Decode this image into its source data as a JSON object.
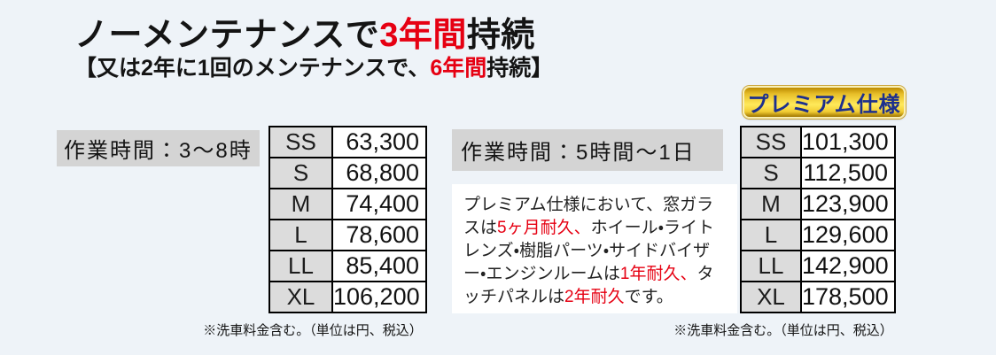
{
  "header": {
    "title": {
      "pre": "ノーメンテナンスで",
      "highlight": "3年間",
      "post": "持続"
    },
    "subtitle": {
      "pre": "【又は2年に1回のメンテナンスで、",
      "highlight": "6年間",
      "post": "持続】"
    }
  },
  "premium_badge": {
    "label": "プレミアム仕様"
  },
  "standard_plan": {
    "work_time_label": "作業時間：3～8時",
    "price_table": {
      "rows": [
        {
          "size": "SS",
          "price": "63,300"
        },
        {
          "size": "S",
          "price": "68,800"
        },
        {
          "size": "M",
          "price": "74,400"
        },
        {
          "size": "L",
          "price": "78,600"
        },
        {
          "size": "LL",
          "price": "85,400"
        },
        {
          "size": "XL",
          "price": "106,200"
        }
      ]
    },
    "footnote": "※洗車料金含む。（単位は円、税込）"
  },
  "premium_plan": {
    "work_time_label": "作業時間：5時間～1日",
    "description_segments": [
      {
        "text": "プレミアム仕様において、窓ガラスは",
        "red": false
      },
      {
        "text": "5ヶ月耐久、",
        "red": true
      },
      {
        "text": "ホイール・ライトレンズ・樹脂パーツ・サイドバイザー・エンジンルームは",
        "red": false
      },
      {
        "text": "1年耐久、",
        "red": true
      },
      {
        "text": "タッチパネルは",
        "red": false
      },
      {
        "text": "2年耐久",
        "red": true
      },
      {
        "text": "です。",
        "red": false
      }
    ],
    "price_table": {
      "rows": [
        {
          "size": "SS",
          "price": "101,300"
        },
        {
          "size": "S",
          "price": "112,500"
        },
        {
          "size": "M",
          "price": "123,900"
        },
        {
          "size": "L",
          "price": "129,600"
        },
        {
          "size": "LL",
          "price": "142,900"
        },
        {
          "size": "XL",
          "price": "178,500"
        }
      ]
    },
    "footnote": "※洗車料金含む。（単位は円、税込）"
  },
  "colors": {
    "background": "#eef3f8",
    "accent_red": "#e60012",
    "label_gray": "#d4d4d4",
    "cell_gray": "#dcdcdc",
    "badge_gold": "#ffe95a",
    "badge_text_navy": "#1c2f8e"
  }
}
